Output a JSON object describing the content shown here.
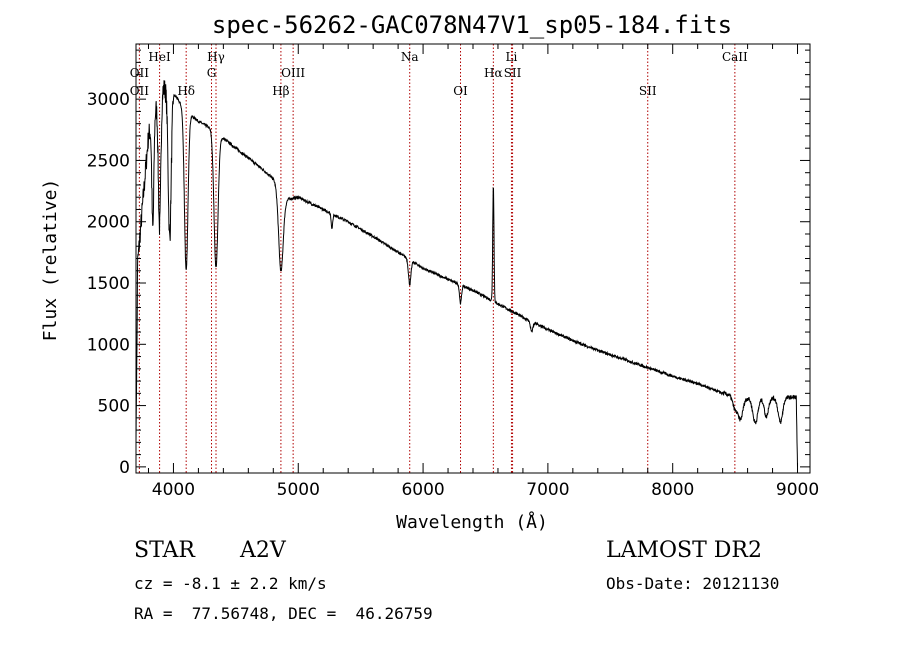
{
  "chart_data": {
    "type": "line",
    "title": "spec-56262-GAC078N47V1_sp05-184.fits",
    "xlabel": "Wavelength (Å)",
    "ylabel": "Flux (relative)",
    "xlim": [
      3700,
      9100
    ],
    "ylim": [
      -50,
      3450
    ],
    "xticks": [
      4000,
      5000,
      6000,
      7000,
      8000,
      9000
    ],
    "yticks": [
      0,
      500,
      1000,
      1500,
      2000,
      2500,
      3000
    ],
    "grid": false,
    "line_color": "#000000",
    "marker_color": "#b00000",
    "lines": [
      {
        "label": "OII",
        "x": 3727,
        "row": 2
      },
      {
        "label": "OII",
        "x": 3727,
        "row": 3
      },
      {
        "label": "HeI",
        "x": 3889,
        "row": 1
      },
      {
        "label": "Hδ",
        "x": 4102,
        "row": 3
      },
      {
        "label": "Hγ",
        "x": 4341,
        "row": 1
      },
      {
        "label": "G",
        "x": 4305,
        "row": 2
      },
      {
        "label": "Hβ",
        "x": 4861,
        "row": 3
      },
      {
        "label": "OIII",
        "x": 4959,
        "row": 2
      },
      {
        "label": "Na",
        "x": 5893,
        "row": 1
      },
      {
        "label": "OI",
        "x": 6300,
        "row": 3
      },
      {
        "label": "Hα",
        "x": 6563,
        "row": 2
      },
      {
        "label": "SII",
        "x": 6717,
        "row": 2
      },
      {
        "label": "Li",
        "x": 6708,
        "row": 1
      },
      {
        "label": "SII",
        "x": 7800,
        "row": 3
      },
      {
        "label": "CaII",
        "x": 8498,
        "row": 1
      }
    ],
    "continuum": [
      [
        3700,
        1500
      ],
      [
        3800,
        2700
      ],
      [
        3900,
        3100
      ],
      [
        4000,
        3050
      ],
      [
        4100,
        2900
      ],
      [
        4200,
        2820
      ],
      [
        4300,
        2760
      ],
      [
        4400,
        2680
      ],
      [
        4500,
        2600
      ],
      [
        4600,
        2520
      ],
      [
        4700,
        2440
      ],
      [
        4800,
        2350
      ],
      [
        4900,
        2180
      ],
      [
        5000,
        2200
      ],
      [
        5200,
        2100
      ],
      [
        5400,
        2000
      ],
      [
        5600,
        1880
      ],
      [
        5800,
        1750
      ],
      [
        6000,
        1620
      ],
      [
        6200,
        1530
      ],
      [
        6400,
        1440
      ],
      [
        6600,
        1330
      ],
      [
        6800,
        1220
      ],
      [
        7000,
        1120
      ],
      [
        7200,
        1030
      ],
      [
        7400,
        950
      ],
      [
        7600,
        880
      ],
      [
        7800,
        810
      ],
      [
        8000,
        740
      ],
      [
        8200,
        680
      ],
      [
        8400,
        600
      ],
      [
        8600,
        560
      ],
      [
        8800,
        560
      ],
      [
        9000,
        570
      ]
    ],
    "absorption_features": [
      {
        "x": 3835,
        "depth": 900,
        "width": 8
      },
      {
        "x": 3889,
        "depth": 1100,
        "width": 10
      },
      {
        "x": 3970,
        "depth": 1200,
        "width": 12
      },
      {
        "x": 4102,
        "depth": 1300,
        "width": 14
      },
      {
        "x": 4341,
        "depth": 1100,
        "width": 16
      },
      {
        "x": 4861,
        "depth": 650,
        "width": 18
      },
      {
        "x": 5270,
        "depth": 120,
        "width": 6
      },
      {
        "x": 5893,
        "depth": 200,
        "width": 10
      },
      {
        "x": 6300,
        "depth": 150,
        "width": 8
      },
      {
        "x": 6870,
        "depth": 80,
        "width": 10
      },
      {
        "x": 8498,
        "depth": 100,
        "width": 18
      },
      {
        "x": 8542,
        "depth": 180,
        "width": 20
      },
      {
        "x": 8662,
        "depth": 200,
        "width": 20
      },
      {
        "x": 8750,
        "depth": 150,
        "width": 16
      },
      {
        "x": 8863,
        "depth": 200,
        "width": 18
      }
    ],
    "emission_features": [
      {
        "x": 6563,
        "height": 950,
        "width": 5
      }
    ]
  },
  "info": {
    "object_type": "STAR",
    "subclass": "A2V",
    "survey": "LAMOST DR2",
    "cz": "cz = -8.1 ± 2.2 km/s",
    "obs_date": "Obs-Date: 20121130",
    "coords": "RA =  77.56748, DEC =  46.26759"
  }
}
